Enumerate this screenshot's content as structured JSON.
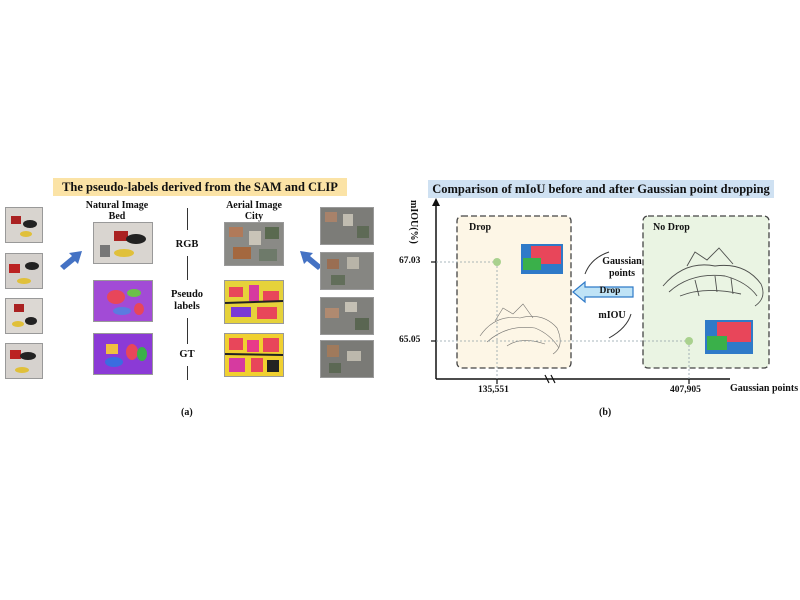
{
  "panel_a": {
    "title": "The pseudo-labels derived from the SAM and CLIP",
    "natural_title_line1": "Natural Image",
    "natural_title_line2": "Bed",
    "aerial_title_line1": "Aerial Image",
    "aerial_title_line2": "City",
    "row_rgb": "RGB",
    "row_pseudo_line1": "Pseudo",
    "row_pseudo_line2": "labels",
    "row_gt": "GT",
    "caption": "(a)"
  },
  "panel_b": {
    "title": "Comparison of mIoU before and after Gaussian point dropping",
    "ylabel": "mIOU(%)",
    "xlabel": "Gaussian points",
    "drop_label": "Drop",
    "no_drop_label": "No Drop",
    "middle_gaussian": "Gaussian",
    "middle_points": "points",
    "middle_drop": "Drop",
    "middle_miou": "mIOU",
    "caption": "(b)"
  },
  "chart_data": {
    "type": "scatter",
    "xlabel": "Gaussian points",
    "ylabel": "mIOU(%)",
    "x_tick_labels": [
      "135,551",
      "407,905"
    ],
    "y_tick_labels": [
      "67.03",
      "65.05"
    ],
    "points": [
      {
        "label": "Drop",
        "x": 135551,
        "y": 67.03
      },
      {
        "label": "No Drop",
        "x": 407905,
        "y": 65.05
      }
    ],
    "colors": {
      "point": "#a9d18e",
      "drop_box": "#fdf6e6",
      "no_drop_box": "#eaf4e3"
    }
  },
  "colors": {
    "arrow": "#4472c4",
    "banner_a": "#fbe3a6",
    "banner_b": "#cfe1f2"
  }
}
